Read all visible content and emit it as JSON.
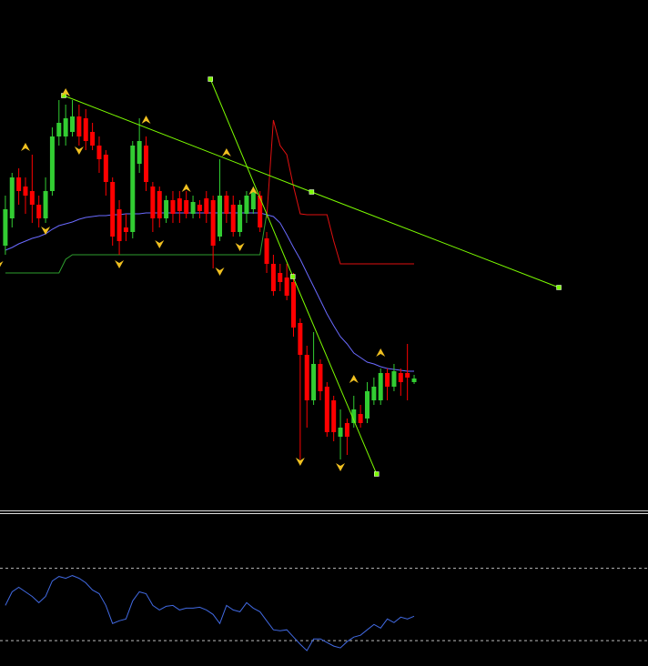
{
  "chart_data": [
    {
      "type": "candlestick",
      "xlim": [
        -0.8,
        95.9
      ],
      "ylim": [
        0,
        560
      ],
      "up_color": "#32cd32",
      "down_color": "#ff0000",
      "open": [
        290,
        320,
        365,
        355,
        350,
        335,
        320,
        350,
        410,
        410,
        415,
        432,
        430,
        415,
        400,
        390,
        360,
        330,
        310,
        305,
        380,
        400,
        355,
        350,
        320,
        340,
        342,
        340,
        325,
        335,
        342,
        340,
        300,
        345,
        335,
        305,
        325,
        330,
        345,
        298,
        270,
        260,
        255,
        250,
        205,
        170,
        120,
        160,
        135,
        120,
        80,
        95,
        95,
        105,
        100,
        120,
        120,
        150,
        135,
        150,
        150,
        140
      ],
      "high": [
        345,
        370,
        375,
        365,
        390,
        345,
        365,
        420,
        450,
        445,
        450,
        445,
        440,
        425,
        410,
        395,
        365,
        340,
        325,
        405,
        430,
        410,
        360,
        355,
        345,
        350,
        350,
        350,
        345,
        340,
        350,
        345,
        385,
        350,
        345,
        340,
        350,
        355,
        350,
        305,
        280,
        270,
        270,
        260,
        210,
        180,
        195,
        165,
        140,
        125,
        110,
        100,
        125,
        115,
        140,
        145,
        155,
        155,
        160,
        155,
        182,
        148
      ],
      "low": [
        280,
        310,
        335,
        325,
        315,
        310,
        315,
        345,
        400,
        400,
        410,
        400,
        395,
        395,
        370,
        345,
        290,
        280,
        295,
        298,
        370,
        350,
        305,
        310,
        315,
        315,
        315,
        320,
        320,
        320,
        315,
        265,
        295,
        315,
        300,
        300,
        315,
        325,
        305,
        260,
        235,
        240,
        230,
        190,
        55,
        90,
        115,
        120,
        80,
        75,
        55,
        60,
        90,
        90,
        95,
        115,
        115,
        120,
        130,
        125,
        120,
        138
      ],
      "close": [
        330,
        365,
        350,
        345,
        335,
        320,
        350,
        410,
        425,
        430,
        432,
        410,
        405,
        400,
        385,
        360,
        300,
        295,
        305,
        400,
        405,
        360,
        320,
        320,
        340,
        325,
        328,
        325,
        338,
        328,
        325,
        290,
        345,
        325,
        305,
        335,
        345,
        350,
        310,
        270,
        240,
        250,
        235,
        200,
        170,
        120,
        160,
        130,
        85,
        85,
        90,
        80,
        110,
        95,
        130,
        135,
        150,
        135,
        152,
        140,
        145,
        144
      ],
      "lines": [
        {
          "color": "#6a6aff",
          "values": [
            285,
            288,
            292,
            295,
            298,
            300,
            303,
            308,
            312,
            314,
            316,
            319,
            321,
            322,
            323,
            323,
            324,
            324,
            325,
            325,
            325,
            326,
            326,
            326,
            326,
            326,
            326,
            326,
            326,
            326,
            326,
            326,
            326,
            326,
            326,
            326,
            326,
            326,
            326,
            324,
            322,
            315,
            302,
            288,
            275,
            260,
            245,
            230,
            215,
            202,
            190,
            182,
            172,
            167,
            162,
            160,
            157,
            155,
            154,
            153,
            152,
            152
          ]
        },
        {
          "color": "#e01010",
          "values": [
            null,
            null,
            null,
            null,
            null,
            null,
            null,
            null,
            null,
            null,
            null,
            null,
            null,
            null,
            null,
            null,
            null,
            null,
            null,
            null,
            null,
            null,
            null,
            null,
            null,
            null,
            null,
            null,
            null,
            null,
            null,
            null,
            null,
            null,
            null,
            null,
            null,
            null,
            null,
            320,
            428,
            400,
            390,
            355,
            325,
            324,
            324,
            324,
            324,
            295,
            270,
            270,
            270,
            270,
            270,
            270,
            270,
            270,
            270,
            270,
            270,
            270
          ]
        },
        {
          "color": "#2e9e2e",
          "values": [
            260,
            260,
            260,
            260,
            260,
            260,
            260,
            260,
            260,
            275,
            280,
            280,
            280,
            280,
            280,
            280,
            280,
            280,
            280,
            280,
            280,
            280,
            280,
            280,
            280,
            280,
            280,
            280,
            280,
            280,
            280,
            280,
            280,
            280,
            280,
            280,
            280,
            280,
            280,
            325,
            null,
            null,
            null,
            null,
            null,
            null,
            null,
            null,
            null,
            null,
            null,
            null,
            null,
            null,
            null,
            null,
            null,
            null,
            null,
            null,
            null,
            null
          ]
        }
      ],
      "trendlines": [
        {
          "color": "#7cfc00",
          "points": [
            {
              "x": 8.7,
              "value": 455
            },
            {
              "x": 45.7,
              "value": 349
            },
            {
              "x": 82.6,
              "value": 244
            }
          ]
        },
        {
          "color": "#7cfc00",
          "points": [
            {
              "x": 30.6,
              "value": 473
            },
            {
              "x": 42.9,
              "value": 256
            },
            {
              "x": 55.4,
              "value": 39
            }
          ]
        }
      ],
      "arrow_color": "#f0c020",
      "up_arrows": [
        {
          "x": 9,
          "value": 463
        },
        {
          "x": 3,
          "value": 403
        },
        {
          "x": 21,
          "value": 433
        },
        {
          "x": 33,
          "value": 397
        },
        {
          "x": 27,
          "value": 358
        },
        {
          "x": 37,
          "value": 355
        },
        {
          "x": 56,
          "value": 177
        },
        {
          "x": 52,
          "value": 148
        }
      ],
      "down_arrows": [
        {
          "x": 6,
          "value": 302
        },
        {
          "x": 11,
          "value": 390
        },
        {
          "x": 17,
          "value": 265
        },
        {
          "x": 23,
          "value": 287
        },
        {
          "x": 32,
          "value": 257
        },
        {
          "x": 35,
          "value": 284
        },
        {
          "x": 44,
          "value": 48
        },
        {
          "x": 50,
          "value": 42
        },
        {
          "x": -1,
          "value": 264
        }
      ]
    },
    {
      "type": "line",
      "xlim": [
        -0.8,
        95.9
      ],
      "ylim": [
        16,
        100
      ],
      "color": "#4169e1",
      "levels": [
        70,
        30
      ],
      "values": [
        49.5,
        57,
        59.5,
        57,
        54.5,
        51,
        54.5,
        63,
        65.5,
        64.5,
        66,
        64.5,
        62,
        58,
        56,
        49.5,
        39.5,
        41,
        42,
        52,
        57,
        56,
        49.5,
        47,
        49,
        49.5,
        47,
        48,
        48,
        48.5,
        47,
        44.5,
        39.5,
        49.5,
        47,
        46,
        51,
        48,
        46,
        41,
        36,
        35.5,
        36,
        32,
        28,
        24.5,
        31,
        31,
        29,
        27,
        26,
        29.5,
        32,
        33,
        36,
        39,
        37,
        42,
        40,
        43,
        42,
        43.5
      ]
    }
  ]
}
